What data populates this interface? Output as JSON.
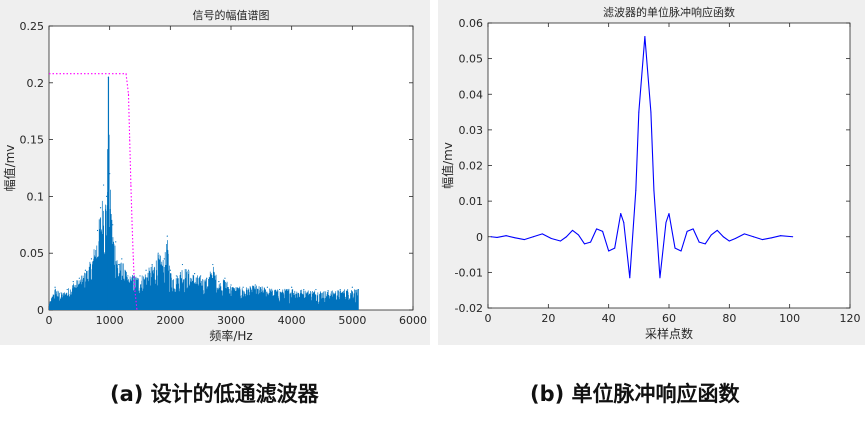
{
  "chart_data": [
    {
      "type": "line",
      "title": "信号的幅值谱图",
      "xlabel": "频率/Hz",
      "ylabel": "幅值/mv",
      "xlim": [
        0,
        6000
      ],
      "ylim": [
        0,
        0.25
      ],
      "xticks": [
        0,
        1000,
        2000,
        3000,
        4000,
        5000,
        6000
      ],
      "yticks": [
        0,
        0.05,
        0.1,
        0.15,
        0.2,
        0.25
      ],
      "xtick_labels": [
        "0",
        "1000",
        "2000",
        "3000",
        "4000",
        "5000",
        "6000"
      ],
      "ytick_labels": [
        "0",
        "0.05",
        "0.1",
        "0.15",
        "0.2",
        "0.25"
      ],
      "grid": false,
      "series": [
        {
          "style": "spectrum",
          "color": "#0072bd",
          "x": [
            0,
            100,
            200,
            300,
            400,
            500,
            600,
            700,
            800,
            850,
            900,
            950,
            980,
            1000,
            1050,
            1100,
            1150,
            1200,
            1300,
            1400,
            1500,
            1600,
            1700,
            1800,
            1900,
            1950,
            2000,
            2100,
            2200,
            2300,
            2400,
            2500,
            2600,
            2700,
            2800,
            2900,
            3000,
            3200,
            3400,
            3600,
            3800,
            4000,
            4200,
            4400,
            4600,
            4800,
            5000,
            5100
          ],
          "values": [
            0.005,
            0.02,
            0.015,
            0.018,
            0.025,
            0.028,
            0.035,
            0.045,
            0.07,
            0.09,
            0.11,
            0.1,
            0.205,
            0.12,
            0.075,
            0.06,
            0.04,
            0.045,
            0.03,
            0.032,
            0.03,
            0.035,
            0.04,
            0.05,
            0.045,
            0.065,
            0.035,
            0.03,
            0.04,
            0.035,
            0.032,
            0.03,
            0.028,
            0.04,
            0.025,
            0.028,
            0.022,
            0.02,
            0.022,
            0.02,
            0.018,
            0.02,
            0.018,
            0.018,
            0.017,
            0.018,
            0.02,
            0.018
          ]
        },
        {
          "style": "dotted",
          "color": "#ff00ff",
          "x": [
            0,
            1270,
            1310,
            1330,
            1350,
            1370,
            1390,
            1410,
            1450
          ],
          "values": [
            0.208,
            0.208,
            0.19,
            0.15,
            0.11,
            0.075,
            0.045,
            0.02,
            0
          ]
        }
      ]
    },
    {
      "type": "line",
      "title": "滤波器的单位脉冲响应函数",
      "xlabel": "采样点数",
      "ylabel": "幅值/mv",
      "xlim": [
        0,
        120
      ],
      "ylim": [
        -0.02,
        0.06
      ],
      "xticks": [
        0,
        20,
        40,
        60,
        80,
        100,
        120
      ],
      "yticks": [
        -0.02,
        -0.01,
        0,
        0.01,
        0.02,
        0.03,
        0.04,
        0.05,
        0.06
      ],
      "xtick_labels": [
        "0",
        "20",
        "40",
        "60",
        "80",
        "100",
        "120"
      ],
      "ytick_labels": [
        "-0.02",
        "-0.01",
        "0",
        "0.01",
        "0.02",
        "0.03",
        "0.04",
        "0.05",
        "0.06"
      ],
      "grid": false,
      "series": [
        {
          "color": "#0000ff",
          "x": [
            1,
            3,
            6,
            9,
            12,
            15,
            18,
            21,
            24,
            26,
            28,
            30,
            32,
            34,
            36,
            38,
            40,
            42,
            44,
            45,
            47,
            49,
            50,
            52,
            54,
            55,
            57,
            59,
            60,
            62,
            64,
            66,
            68,
            70,
            72,
            74,
            76,
            78,
            80,
            82,
            85,
            88,
            91,
            94,
            97,
            101
          ],
          "values": [
            0,
            -0.0002,
            0.0003,
            -0.0003,
            -0.0008,
            0,
            0.0008,
            -0.0005,
            -0.0012,
            0,
            0.0018,
            0.0005,
            -0.002,
            -0.0015,
            0.0022,
            0.0015,
            -0.004,
            -0.0032,
            0.0065,
            0.004,
            -0.0115,
            0.013,
            0.035,
            0.0562,
            0.035,
            0.013,
            -0.0115,
            0.004,
            0.0065,
            -0.0032,
            -0.004,
            0.0015,
            0.0022,
            -0.0015,
            -0.002,
            0.0005,
            0.0018,
            0,
            -0.0012,
            -0.0005,
            0.0008,
            0,
            -0.0008,
            -0.0003,
            0.0003,
            0
          ]
        }
      ]
    }
  ],
  "captions": {
    "a": "(a)  设计的低通滤波器",
    "b": "(b)  单位脉冲响应函数"
  }
}
